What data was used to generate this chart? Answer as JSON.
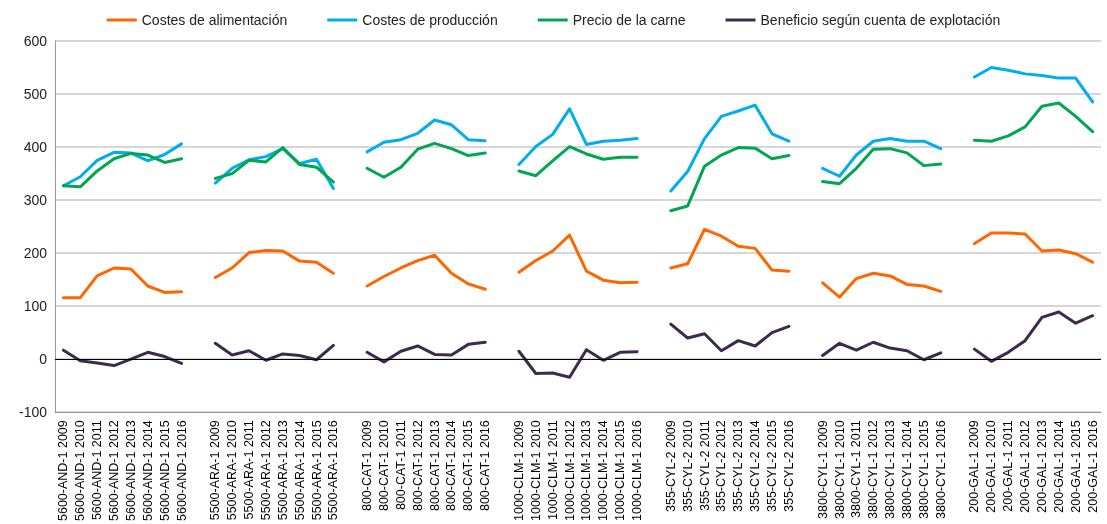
{
  "chart_data": {
    "type": "line",
    "categories": [
      "5600-AND-1 2009",
      "5600-AND-1 2010",
      "5600-AND-1 2011",
      "5600-AND-1 2012",
      "5600-AND-1 2013",
      "5600-AND-1 2014",
      "5600-AND-1 2015",
      "5600-AND-1 2016",
      null,
      "5500-ARA-1 2009",
      "5500-ARA-1 2010",
      "5500-ARA-1 2011",
      "5500-ARA-1 2012",
      "5500-ARA-1 2013",
      "5500-ARA-1 2014",
      "5500-ARA-1 2015",
      "5500-ARA-1 2016",
      null,
      "800-CAT-1 2009",
      "800-CAT-1 2010",
      "800-CAT-1 2011",
      "800-CAT-1 2012",
      "800-CAT-1 2013",
      "800-CAT-1 2014",
      "800-CAT-1 2015",
      "800-CAT-1 2016",
      null,
      "1000-CLM-1 2009",
      "1000-CLM-1 2010",
      "1000-CLM-1 2011",
      "1000-CLM-1 2012",
      "1000-CLM-1 2013",
      "1000-CLM-1 2014",
      "1000-CLM-1 2015",
      "1000-CLM-1 2016",
      null,
      "355-CYL-2 2009",
      "355-CYL-2 2010",
      "355-CYL-2 2011",
      "355-CYL-2 2012",
      "355-CYL-2 2013",
      "355-CYL-2 2014",
      "355-CYL-2 2015",
      "355-CYL-2 2016",
      null,
      "3800-CYL-1 2009",
      "3800-CYL-1 2010",
      "3800-CYL-1 2011",
      "3800-CYL-1 2012",
      "3800-CYL-1 2013",
      "3800-CYL-1 2014",
      "3800-CYL-1 2015",
      "3800-CYL-1 2016",
      null,
      "200-GAL-1 2009",
      "200-GAL-1 2010",
      "200-GAL-1 2011",
      "200-GAL-1 2012",
      "200-GAL-1 2013",
      "200-GAL-1 2014",
      "200-GAL-1 2015",
      "200-GAL-1 2016"
    ],
    "series": [
      {
        "name": "Costes de alimentación",
        "color": "#ff6600",
        "values": [
          116,
          116,
          157,
          172,
          170,
          138,
          126,
          127,
          null,
          154,
          172,
          201,
          205,
          204,
          185,
          183,
          162,
          null,
          138,
          156,
          172,
          186,
          196,
          162,
          142,
          132,
          null,
          164,
          186,
          204,
          234,
          166,
          149,
          144,
          145,
          null,
          172,
          180,
          245,
          232,
          213,
          209,
          168,
          166,
          null,
          144,
          117,
          152,
          162,
          157,
          141,
          138,
          128,
          null,
          218,
          238,
          238,
          236,
          204,
          206,
          199,
          183
        ]
      },
      {
        "name": "Costes de producción",
        "color": "#00aeef",
        "values": [
          327,
          344,
          375,
          390,
          389,
          374,
          386,
          406,
          null,
          332,
          360,
          376,
          382,
          397,
          369,
          377,
          322,
          null,
          391,
          409,
          414,
          426,
          451,
          442,
          414,
          412,
          null,
          367,
          401,
          424,
          472,
          405,
          411,
          413,
          416,
          null,
          317,
          354,
          416,
          458,
          468,
          479,
          425,
          411,
          null,
          360,
          345,
          385,
          411,
          416,
          411,
          411,
          397,
          null,
          532,
          550,
          545,
          538,
          535,
          530,
          530,
          485
        ]
      },
      {
        "name": "Precio de la carne",
        "color": "#00a650",
        "values": [
          327,
          325,
          355,
          378,
          388,
          385,
          371,
          378,
          null,
          341,
          350,
          375,
          372,
          399,
          367,
          362,
          334,
          null,
          360,
          343,
          362,
          396,
          407,
          397,
          384,
          389,
          null,
          355,
          346,
          374,
          401,
          387,
          377,
          381,
          381,
          null,
          280,
          289,
          364,
          385,
          399,
          398,
          378,
          384,
          null,
          335,
          331,
          360,
          396,
          397,
          389,
          365,
          368,
          null,
          413,
          411,
          421,
          438,
          477,
          483,
          458,
          429
        ]
      },
      {
        "name": "Beneficio según cuenta de explotación",
        "color": "#3d2b4f",
        "values": [
          17,
          -3,
          -7,
          -12,
          0,
          13,
          5,
          -8,
          null,
          30,
          8,
          16,
          -2,
          10,
          7,
          -1,
          26,
          null,
          13,
          -5,
          15,
          25,
          9,
          8,
          28,
          32,
          null,
          15,
          -27,
          -26,
          -34,
          18,
          -2,
          13,
          14,
          null,
          66,
          40,
          48,
          16,
          35,
          25,
          50,
          62,
          null,
          7,
          30,
          17,
          32,
          21,
          16,
          -1,
          12,
          null,
          19,
          -4,
          13,
          35,
          79,
          89,
          68,
          82
        ]
      }
    ],
    "ylim": [
      -100,
      600
    ],
    "yticks": [
      -100,
      0,
      100,
      200,
      300,
      400,
      500,
      600
    ],
    "grid": "y",
    "legend": "top",
    "marker": "none",
    "line_style": "solid",
    "ref_lines": [
      {
        "axis": "y",
        "value": 0,
        "color": "#000000"
      }
    ]
  }
}
